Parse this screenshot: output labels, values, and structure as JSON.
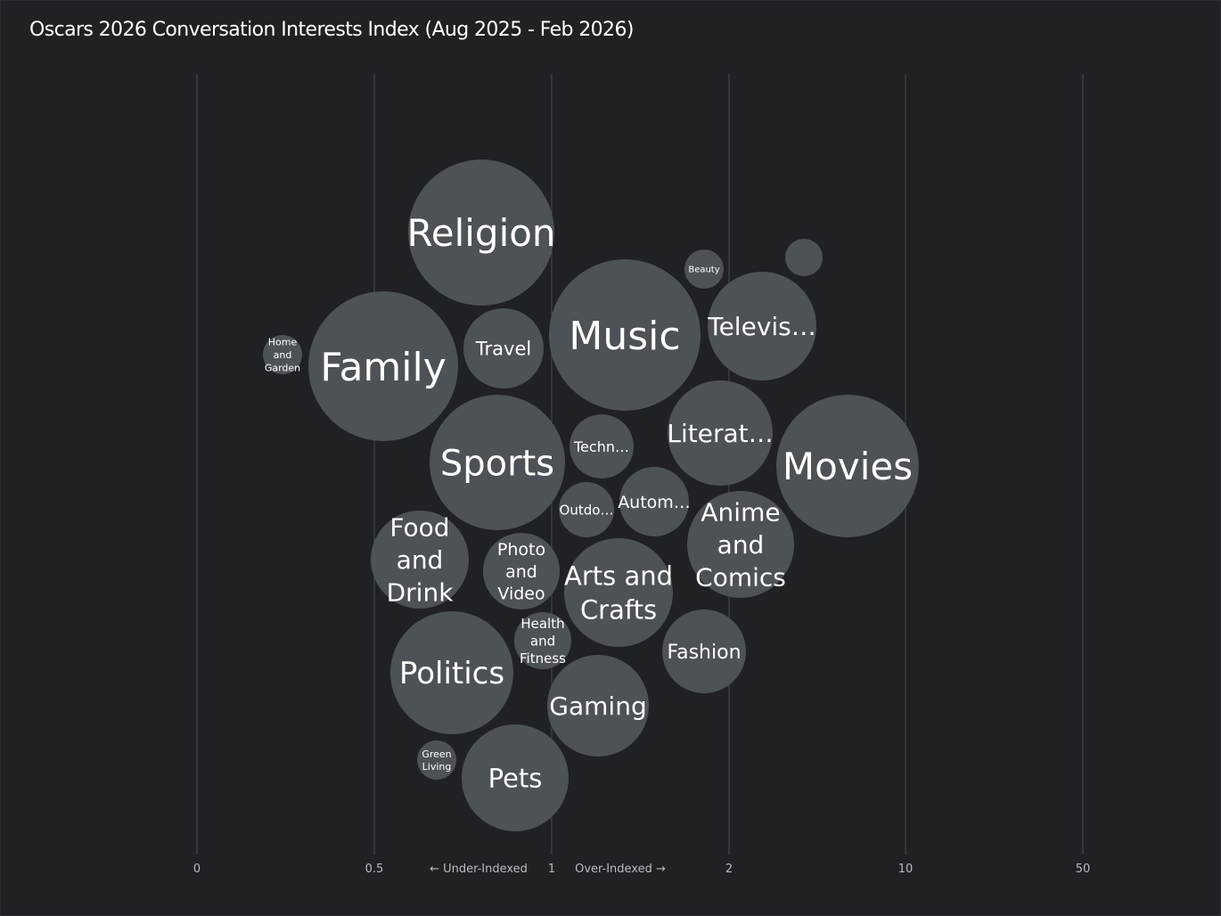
{
  "title": "Oscars 2026 Conversation Interests Index (Aug 2025 - Feb 2026)",
  "colors": {
    "background": "#1f2124",
    "bubble": "#4d5257",
    "gridline": "#474b50",
    "label": "#ffffff",
    "tick": "#b9bcc0"
  },
  "chart_data": {
    "type": "scatter",
    "title": "Oscars 2026 Conversation Interests Index (Aug 2025 - Feb 2026)",
    "xlabel": "",
    "ylabel": "",
    "x_scale": "categorical-index",
    "x_ticks": [
      "0",
      "0.5",
      "1",
      "2",
      "10",
      "50"
    ],
    "axis_notes": {
      "under": "← Under-Indexed",
      "over": "Over-Indexed →"
    },
    "grid": true,
    "legend": "none",
    "bubbles": [
      {
        "label": "Religion",
        "display": [
          "Religion"
        ],
        "index": 0.8,
        "size": 6.6
      },
      {
        "label": "Beauty",
        "display": [
          "Beauty"
        ],
        "index": 1.9,
        "size": 0.3
      },
      {
        "label": "",
        "display": [],
        "index": 2.6,
        "size": 0.3
      },
      {
        "label": "Television",
        "display": [
          "Televis…"
        ],
        "index": 2.4,
        "size": 3.7
      },
      {
        "label": "Home and Garden",
        "display": [
          "Home",
          "and",
          "Garden"
        ],
        "index": 0.25,
        "size": 0.3
      },
      {
        "label": "Family",
        "display": [
          "Family"
        ],
        "index": 0.52,
        "size": 7.0
      },
      {
        "label": "Travel",
        "display": [
          "Travel"
        ],
        "index": 0.85,
        "size": 2.0
      },
      {
        "label": "Music",
        "display": [
          "Music"
        ],
        "index": 1.4,
        "size": 7.2
      },
      {
        "label": "Literature",
        "display": [
          "Literat…"
        ],
        "index": 1.95,
        "size": 3.5
      },
      {
        "label": "Movies",
        "display": [
          "Movies"
        ],
        "index": 5.0,
        "size": 6.4
      },
      {
        "label": "Sports",
        "display": [
          "Sports"
        ],
        "index": 0.85,
        "size": 5.6
      },
      {
        "label": "Technology",
        "display": [
          "Techn…"
        ],
        "index": 1.3,
        "size": 1.3
      },
      {
        "label": "Automotive",
        "display": [
          "Autom…"
        ],
        "index": 1.55,
        "size": 1.5
      },
      {
        "label": "Outdoors",
        "display": [
          "Outdo…"
        ],
        "index": 1.2,
        "size": 1.0
      },
      {
        "label": "Anime and Comics",
        "display": [
          "Anime",
          "and",
          "Comics"
        ],
        "index": 2.1,
        "size": 3.6
      },
      {
        "label": "Food and Drink",
        "display": [
          "Food",
          "and",
          "Drink"
        ],
        "index": 0.63,
        "size": 3.1
      },
      {
        "label": "Photo and Video",
        "display": [
          "Photo",
          "and",
          "Video"
        ],
        "index": 0.92,
        "size": 1.8
      },
      {
        "label": "Arts and Crafts",
        "display": [
          "Arts and",
          "Crafts"
        ],
        "index": 1.38,
        "size": 3.7
      },
      {
        "label": "Health and Fitness",
        "display": [
          "Health",
          "and",
          "Fitness"
        ],
        "index": 0.97,
        "size": 1.0
      },
      {
        "label": "Fashion",
        "display": [
          "Fashion"
        ],
        "index": 1.85,
        "size": 2.2
      },
      {
        "label": "Politics",
        "display": [
          "Politics"
        ],
        "index": 0.72,
        "size": 4.6
      },
      {
        "label": "Gaming",
        "display": [
          "Gaming"
        ],
        "index": 1.26,
        "size": 3.2
      },
      {
        "label": "Green Living",
        "display": [
          "Green",
          "Living"
        ],
        "index": 0.68,
        "size": 0.4
      },
      {
        "label": "Pets",
        "display": [
          "Pets"
        ],
        "index": 0.9,
        "size": 3.6
      }
    ]
  }
}
